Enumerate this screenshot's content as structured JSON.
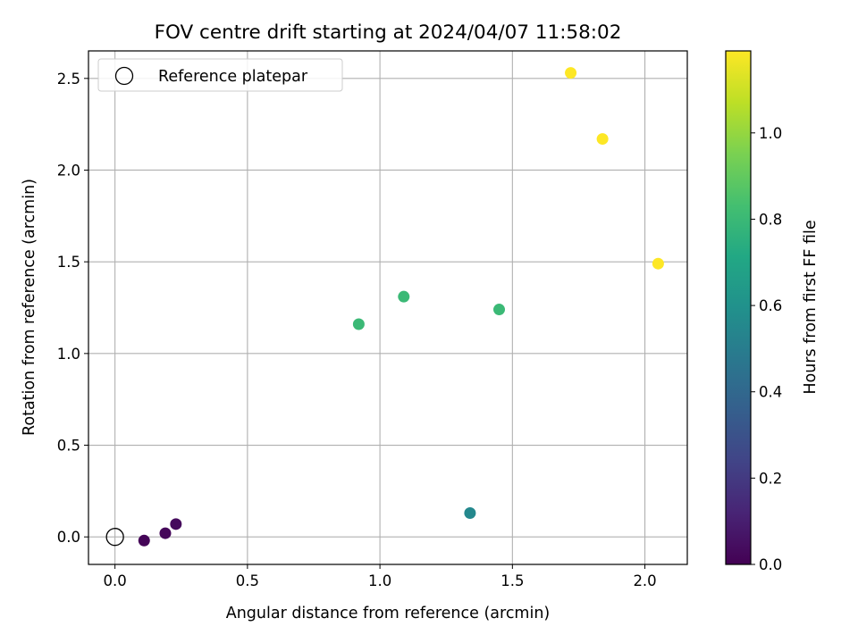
{
  "chart_data": {
    "type": "scatter",
    "title": "FOV centre drift starting at 2024/04/07 11:58:02",
    "xlabel": "Angular distance from reference (arcmin)",
    "ylabel": "Rotation from reference (arcmin)",
    "xlim": [
      -0.1,
      2.16
    ],
    "ylim": [
      -0.15,
      2.65
    ],
    "xticks": [
      "0.0",
      "0.5",
      "1.0",
      "1.5",
      "2.0"
    ],
    "yticks": [
      "0.0",
      "0.5",
      "1.0",
      "1.5",
      "2.0",
      "2.5"
    ],
    "grid": true,
    "legend": {
      "placement": "upper-left",
      "entries": [
        "Reference platepar"
      ]
    },
    "reference": {
      "x": 0.0,
      "y": 0.0
    },
    "colorbar": {
      "label": "Hours from first FF file",
      "range": [
        0.0,
        1.19
      ],
      "ticks": [
        "0.0",
        "0.2",
        "0.4",
        "0.6",
        "0.8",
        "1.0"
      ],
      "colormap": "viridis"
    },
    "points": [
      {
        "x": 0.11,
        "y": -0.02,
        "c": 0.01
      },
      {
        "x": 0.19,
        "y": 0.02,
        "c": 0.02
      },
      {
        "x": 0.23,
        "y": 0.07,
        "c": 0.03
      },
      {
        "x": 1.34,
        "y": 0.13,
        "c": 0.55
      },
      {
        "x": 0.92,
        "y": 1.16,
        "c": 0.8
      },
      {
        "x": 1.09,
        "y": 1.31,
        "c": 0.8
      },
      {
        "x": 1.45,
        "y": 1.24,
        "c": 0.8
      },
      {
        "x": 1.72,
        "y": 2.53,
        "c": 1.19
      },
      {
        "x": 1.84,
        "y": 2.17,
        "c": 1.19
      },
      {
        "x": 2.05,
        "y": 1.49,
        "c": 1.19
      }
    ]
  }
}
